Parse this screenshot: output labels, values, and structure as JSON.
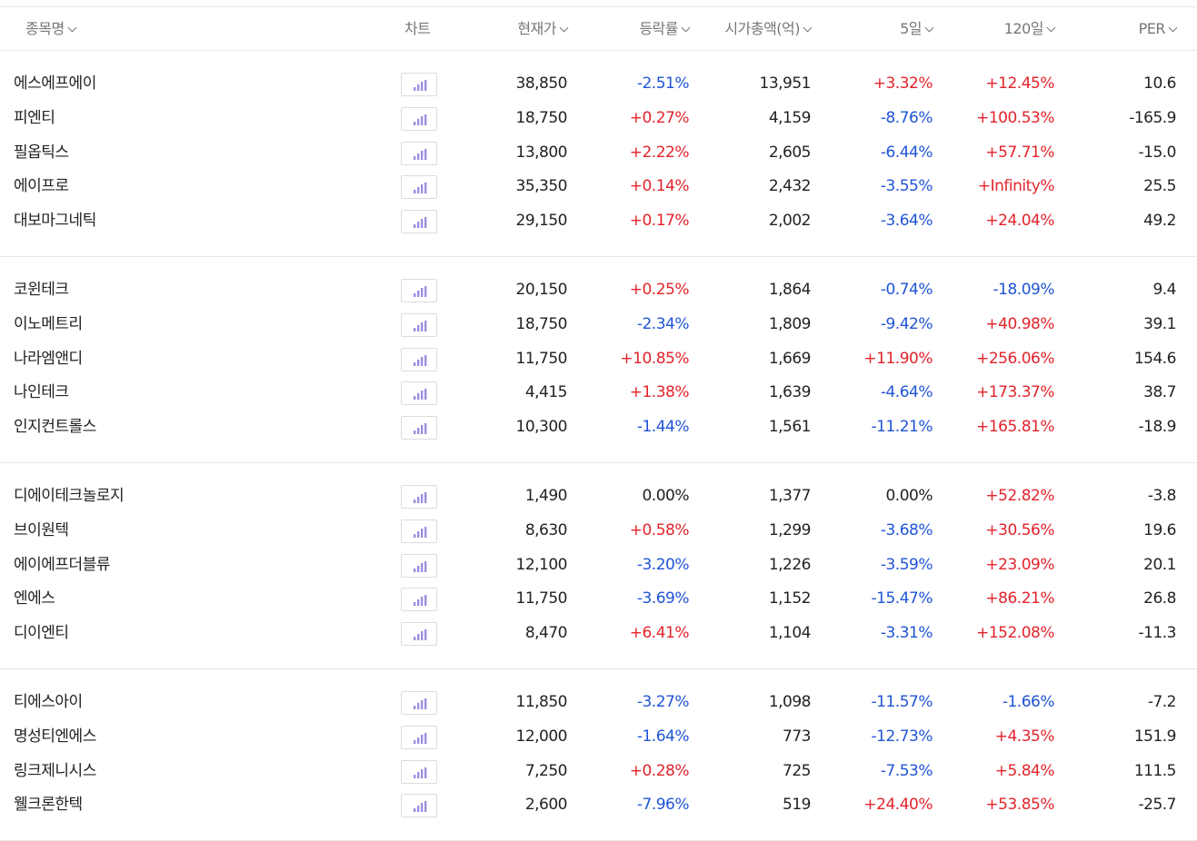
{
  "header": {
    "name": "종목명",
    "chart": "차트",
    "price": "현재가",
    "rate": "등락률",
    "cap": "시가총액(억)",
    "d5": "5일",
    "d120": "120일",
    "per": "PER"
  },
  "colors": {
    "up": "#e3232b",
    "down": "#1f54d6",
    "chart_icon": "#9b8fe0"
  },
  "icons": {
    "chart": "bar-chart-icon",
    "sort": "chevron-down-icon"
  },
  "groups": [
    {
      "rows": [
        {
          "name": "에스에프에이",
          "price": "38,850",
          "rate": "-2.51%",
          "cap": "13,951",
          "d5": "+3.32%",
          "d120": "+12.45%",
          "per": "10.6"
        },
        {
          "name": "피엔티",
          "price": "18,750",
          "rate": "+0.27%",
          "cap": "4,159",
          "d5": "-8.76%",
          "d120": "+100.53%",
          "per": "-165.9"
        },
        {
          "name": "필옵틱스",
          "price": "13,800",
          "rate": "+2.22%",
          "cap": "2,605",
          "d5": "-6.44%",
          "d120": "+57.71%",
          "per": "-15.0"
        },
        {
          "name": "에이프로",
          "price": "35,350",
          "rate": "+0.14%",
          "cap": "2,432",
          "d5": "-3.55%",
          "d120": "+Infinity%",
          "per": "25.5"
        },
        {
          "name": "대보마그네틱",
          "price": "29,150",
          "rate": "+0.17%",
          "cap": "2,002",
          "d5": "-3.64%",
          "d120": "+24.04%",
          "per": "49.2"
        }
      ]
    },
    {
      "rows": [
        {
          "name": "코윈테크",
          "price": "20,150",
          "rate": "+0.25%",
          "cap": "1,864",
          "d5": "-0.74%",
          "d120": "-18.09%",
          "per": "9.4"
        },
        {
          "name": "이노메트리",
          "price": "18,750",
          "rate": "-2.34%",
          "cap": "1,809",
          "d5": "-9.42%",
          "d120": "+40.98%",
          "per": "39.1"
        },
        {
          "name": "나라엠앤디",
          "price": "11,750",
          "rate": "+10.85%",
          "cap": "1,669",
          "d5": "+11.90%",
          "d120": "+256.06%",
          "per": "154.6"
        },
        {
          "name": "나인테크",
          "price": "4,415",
          "rate": "+1.38%",
          "cap": "1,639",
          "d5": "-4.64%",
          "d120": "+173.37%",
          "per": "38.7"
        },
        {
          "name": "인지컨트롤스",
          "price": "10,300",
          "rate": "-1.44%",
          "cap": "1,561",
          "d5": "-11.21%",
          "d120": "+165.81%",
          "per": "-18.9"
        }
      ]
    },
    {
      "rows": [
        {
          "name": "디에이테크놀로지",
          "price": "1,490",
          "rate": "0.00%",
          "cap": "1,377",
          "d5": "0.00%",
          "d120": "+52.82%",
          "per": "-3.8"
        },
        {
          "name": "브이원텍",
          "price": "8,630",
          "rate": "+0.58%",
          "cap": "1,299",
          "d5": "-3.68%",
          "d120": "+30.56%",
          "per": "19.6"
        },
        {
          "name": "에이에프더블류",
          "price": "12,100",
          "rate": "-3.20%",
          "cap": "1,226",
          "d5": "-3.59%",
          "d120": "+23.09%",
          "per": "20.1"
        },
        {
          "name": "엔에스",
          "price": "11,750",
          "rate": "-3.69%",
          "cap": "1,152",
          "d5": "-15.47%",
          "d120": "+86.21%",
          "per": "26.8"
        },
        {
          "name": "디이엔티",
          "price": "8,470",
          "rate": "+6.41%",
          "cap": "1,104",
          "d5": "-3.31%",
          "d120": "+152.08%",
          "per": "-11.3"
        }
      ]
    },
    {
      "rows": [
        {
          "name": "티에스아이",
          "price": "11,850",
          "rate": "-3.27%",
          "cap": "1,098",
          "d5": "-11.57%",
          "d120": "-1.66%",
          "per": "-7.2"
        },
        {
          "name": "명성티엔에스",
          "price": "12,000",
          "rate": "-1.64%",
          "cap": "773",
          "d5": "-12.73%",
          "d120": "+4.35%",
          "per": "151.9"
        },
        {
          "name": "링크제니시스",
          "price": "7,250",
          "rate": "+0.28%",
          "cap": "725",
          "d5": "-7.53%",
          "d120": "+5.84%",
          "per": "111.5"
        },
        {
          "name": "웰크론한텍",
          "price": "2,600",
          "rate": "-7.96%",
          "cap": "519",
          "d5": "+24.40%",
          "d120": "+53.85%",
          "per": "-25.7"
        }
      ]
    }
  ]
}
